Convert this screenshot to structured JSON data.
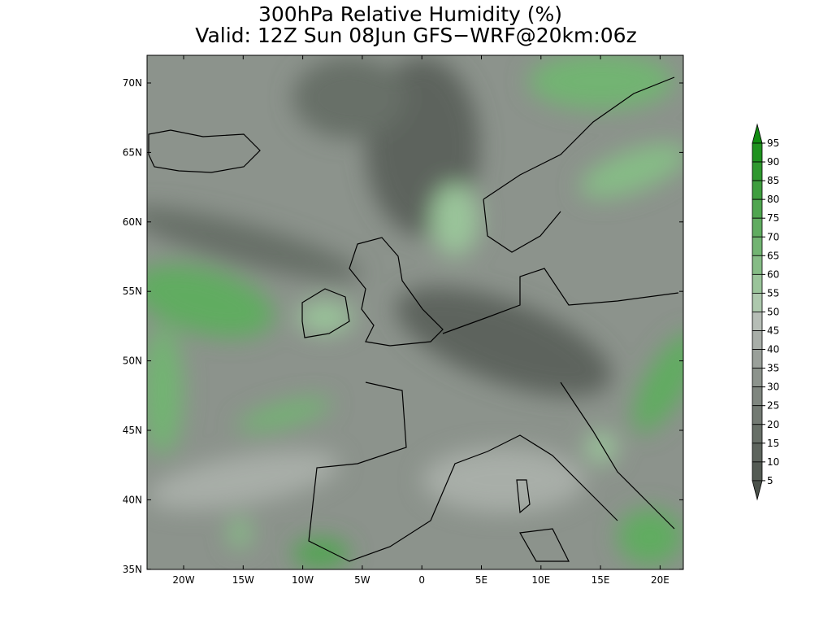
{
  "title": "300hPa Relative Humidity (%)",
  "subtitle": "Valid: 12Z Sun 08Jun GFS−WRF@20km:06z",
  "lat_labels": [
    "70N",
    "65N",
    "60N",
    "55N",
    "50N",
    "45N",
    "40N",
    "35N"
  ],
  "lon_labels": [
    "20W",
    "15W",
    "10W",
    "5W",
    "0",
    "5E",
    "10E",
    "15E",
    "20E"
  ],
  "colorbar": {
    "labels": [
      "95",
      "90",
      "85",
      "80",
      "75",
      "70",
      "65",
      "60",
      "55",
      "50",
      "45",
      "40",
      "35",
      "30",
      "25",
      "20",
      "15",
      "10",
      "5"
    ],
    "colors": [
      "#118c11",
      "#1f921f",
      "#2f982f",
      "#3f9e3f",
      "#4fa54f",
      "#60ac60",
      "#72b472",
      "#86bc86",
      "#9ac49a",
      "#adc8ad",
      "#b6bdb6",
      "#a8aea8",
      "#9aa09a",
      "#8c938c",
      "#7f867f",
      "#737a73",
      "#676f67",
      "#5d645d",
      "#545b54",
      "#4a514a"
    ]
  }
}
